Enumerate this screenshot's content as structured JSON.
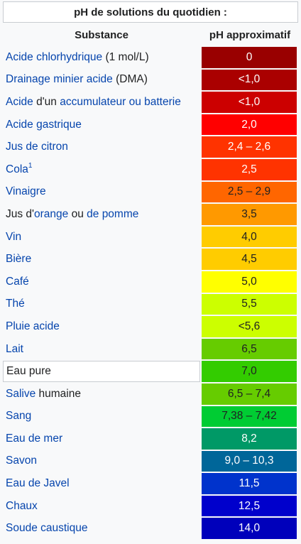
{
  "caption": "pH de solutions du quotidien :",
  "headers": {
    "substance": "Substance",
    "ph": "pH approximatif"
  },
  "rows": [
    {
      "parts": [
        {
          "t": "Acide chlorhydrique",
          "link": true
        },
        {
          "t": " (1 mol/L)",
          "link": false
        }
      ],
      "ph": "0",
      "bg": "#990000",
      "fg": "#ffffff"
    },
    {
      "parts": [
        {
          "t": "Drainage minier acide",
          "link": true
        },
        {
          "t": " (DMA)",
          "link": false
        }
      ],
      "ph": "<1,0",
      "bg": "#aa0000",
      "fg": "#ffffff"
    },
    {
      "parts": [
        {
          "t": "Acide",
          "link": true
        },
        {
          "t": " d'un ",
          "link": false
        },
        {
          "t": "accumulateur ou batterie",
          "link": true
        }
      ],
      "ph": "<1,0",
      "bg": "#cc0000",
      "fg": "#ffffff"
    },
    {
      "parts": [
        {
          "t": "Acide gastrique",
          "link": true
        }
      ],
      "ph": "2,0",
      "bg": "#ff0000",
      "fg": "#ffffff"
    },
    {
      "parts": [
        {
          "t": "Jus de citron",
          "link": true
        }
      ],
      "ph": "2,4 – 2,6",
      "bg": "#ff3300",
      "fg": "#ffffff"
    },
    {
      "parts": [
        {
          "t": "Cola",
          "link": true
        }
      ],
      "sup": "1",
      "ph": "2,5",
      "bg": "#ff3300",
      "fg": "#ffffff"
    },
    {
      "parts": [
        {
          "t": "Vinaigre",
          "link": true
        }
      ],
      "ph": "2,5 – 2,9",
      "bg": "#ff6600",
      "fg": "#202122"
    },
    {
      "parts": [
        {
          "t": "Jus d'",
          "link": false
        },
        {
          "t": "orange",
          "link": true
        },
        {
          "t": " ou ",
          "link": false
        },
        {
          "t": "de pomme",
          "link": true
        }
      ],
      "ph": "3,5",
      "bg": "#ff9900",
      "fg": "#202122"
    },
    {
      "parts": [
        {
          "t": "Vin",
          "link": true
        }
      ],
      "ph": "4,0",
      "bg": "#ffcc00",
      "fg": "#202122"
    },
    {
      "parts": [
        {
          "t": "Bière",
          "link": true
        }
      ],
      "ph": "4,5",
      "bg": "#ffcc00",
      "fg": "#202122"
    },
    {
      "parts": [
        {
          "t": "Café",
          "link": true
        }
      ],
      "ph": "5,0",
      "bg": "#ffff00",
      "fg": "#202122"
    },
    {
      "parts": [
        {
          "t": "Thé",
          "link": true
        }
      ],
      "ph": "5,5",
      "bg": "#ccff00",
      "fg": "#202122"
    },
    {
      "parts": [
        {
          "t": "Pluie acide",
          "link": true
        }
      ],
      "ph": "<5,6",
      "bg": "#ccff00",
      "fg": "#202122"
    },
    {
      "parts": [
        {
          "t": "Lait",
          "link": true
        }
      ],
      "ph": "6,5",
      "bg": "#66cc00",
      "fg": "#202122"
    },
    {
      "parts": [
        {
          "t": "Eau pure",
          "link": false
        }
      ],
      "boxed": true,
      "ph": "7,0",
      "bg": "#33cc00",
      "fg": "#202122"
    },
    {
      "parts": [
        {
          "t": "Salive",
          "link": true
        },
        {
          "t": " humaine",
          "link": false
        }
      ],
      "ph": "6,5 – 7,4",
      "bg": "#66cc00",
      "fg": "#202122"
    },
    {
      "parts": [
        {
          "t": "Sang",
          "link": true
        }
      ],
      "ph": "7,38 – 7,42",
      "bg": "#00cc33",
      "fg": "#202122"
    },
    {
      "parts": [
        {
          "t": "Eau de mer",
          "link": true
        }
      ],
      "ph": "8,2",
      "bg": "#009966",
      "fg": "#ffffff"
    },
    {
      "parts": [
        {
          "t": "Savon",
          "link": true
        }
      ],
      "ph": "9,0 – 10,3",
      "bg": "#006699",
      "fg": "#ffffff"
    },
    {
      "parts": [
        {
          "t": "Eau de Javel",
          "link": true
        }
      ],
      "ph": "11,5",
      "bg": "#0033cc",
      "fg": "#ffffff"
    },
    {
      "parts": [
        {
          "t": "Chaux",
          "link": true
        }
      ],
      "ph": "12,5",
      "bg": "#0000cc",
      "fg": "#ffffff"
    },
    {
      "parts": [
        {
          "t": "Soude caustique",
          "link": true
        }
      ],
      "ph": "14,0",
      "bg": "#0000bb",
      "fg": "#ffffff"
    }
  ]
}
